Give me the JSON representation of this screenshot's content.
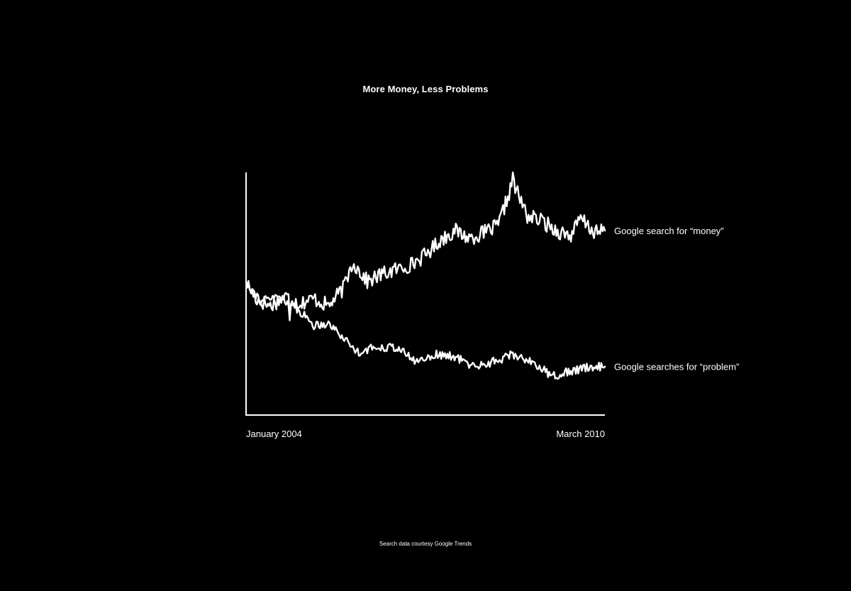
{
  "colors": {
    "background": "#000000",
    "foreground": "#ffffff"
  },
  "chart_data": {
    "type": "line",
    "title": "More Money, Less Problems",
    "xlabel": "",
    "ylabel": "",
    "x_tick_labels": [
      "January 2004",
      "March 2010"
    ],
    "x_range": [
      "2004-01",
      "2010-03"
    ],
    "ylim": [
      0,
      100
    ],
    "grid": false,
    "legend": "direct labels at right end of each line",
    "y_axis_ticks": "none",
    "source": "Search data courtesy Google Trends",
    "series": [
      {
        "name": "Google search for “money”",
        "key_points": [
          {
            "x": "2004-01",
            "y": 55
          },
          {
            "x": "2004-03",
            "y": 48
          },
          {
            "x": "2004-06",
            "y": 45
          },
          {
            "x": "2004-09",
            "y": 49
          },
          {
            "x": "2004-12",
            "y": 46
          },
          {
            "x": "2005-03",
            "y": 48
          },
          {
            "x": "2005-06",
            "y": 45
          },
          {
            "x": "2005-09",
            "y": 52
          },
          {
            "x": "2005-11",
            "y": 63
          },
          {
            "x": "2006-02",
            "y": 55
          },
          {
            "x": "2006-05",
            "y": 58
          },
          {
            "x": "2006-08",
            "y": 60
          },
          {
            "x": "2006-11",
            "y": 62
          },
          {
            "x": "2007-02",
            "y": 66
          },
          {
            "x": "2007-05",
            "y": 72
          },
          {
            "x": "2007-08",
            "y": 76
          },
          {
            "x": "2007-11",
            "y": 73
          },
          {
            "x": "2008-02",
            "y": 75
          },
          {
            "x": "2008-05",
            "y": 78
          },
          {
            "x": "2008-08",
            "y": 96
          },
          {
            "x": "2008-11",
            "y": 82
          },
          {
            "x": "2009-02",
            "y": 80
          },
          {
            "x": "2009-05",
            "y": 76
          },
          {
            "x": "2009-08",
            "y": 74
          },
          {
            "x": "2009-10",
            "y": 81
          },
          {
            "x": "2010-01",
            "y": 75
          },
          {
            "x": "2010-03",
            "y": 76
          }
        ]
      },
      {
        "name": "Google searches for “problem”",
        "key_points": [
          {
            "x": "2004-01",
            "y": 55
          },
          {
            "x": "2004-04",
            "y": 47
          },
          {
            "x": "2004-08",
            "y": 49
          },
          {
            "x": "2004-12",
            "y": 43
          },
          {
            "x": "2005-03",
            "y": 37
          },
          {
            "x": "2005-06",
            "y": 38
          },
          {
            "x": "2005-09",
            "y": 32
          },
          {
            "x": "2005-12",
            "y": 26
          },
          {
            "x": "2006-04",
            "y": 28
          },
          {
            "x": "2006-08",
            "y": 28
          },
          {
            "x": "2006-12",
            "y": 22
          },
          {
            "x": "2007-04",
            "y": 25
          },
          {
            "x": "2007-08",
            "y": 24
          },
          {
            "x": "2007-12",
            "y": 20
          },
          {
            "x": "2008-04",
            "y": 22
          },
          {
            "x": "2008-08",
            "y": 25
          },
          {
            "x": "2008-12",
            "y": 22
          },
          {
            "x": "2009-04",
            "y": 16
          },
          {
            "x": "2009-08",
            "y": 18
          },
          {
            "x": "2009-12",
            "y": 20
          },
          {
            "x": "2010-03",
            "y": 20
          }
        ]
      }
    ]
  }
}
